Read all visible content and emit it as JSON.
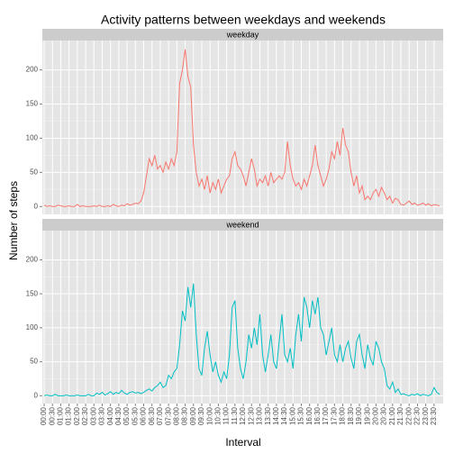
{
  "chart_data": {
    "type": "line",
    "title": "Activity patterns between weekdays and weekends",
    "xlabel": "Interval",
    "ylabel": "Number of steps",
    "categories": [
      "00:00",
      null,
      null,
      "00:30",
      null,
      null,
      "01:00",
      null,
      null,
      "01:30",
      null,
      null,
      "02:00",
      null,
      null,
      "02:30",
      null,
      null,
      "03:00",
      null,
      null,
      "03:30",
      null,
      null,
      "04:00",
      null,
      null,
      "04:30",
      null,
      null,
      "05:00",
      null,
      null,
      "05:30",
      null,
      null,
      "06:00",
      null,
      null,
      "06:30",
      null,
      null,
      "07:00",
      null,
      null,
      "07:30",
      null,
      null,
      "08:00",
      null,
      null,
      "08:30",
      null,
      null,
      "09:00",
      null,
      null,
      "09:30",
      null,
      null,
      "10:00",
      null,
      null,
      "10:30",
      null,
      null,
      "11:00",
      null,
      null,
      "11:30",
      null,
      null,
      "12:00",
      null,
      null,
      "12:30",
      null,
      null,
      "13:00",
      null,
      null,
      "13:30",
      null,
      null,
      "14:00",
      null,
      null,
      "14:30",
      null,
      null,
      "15:00",
      null,
      null,
      "15:30",
      null,
      null,
      "16:00",
      null,
      null,
      "16:30",
      null,
      null,
      "17:00",
      null,
      null,
      "17:30",
      null,
      null,
      "18:00",
      null,
      null,
      "18:30",
      null,
      null,
      "19:00",
      null,
      null,
      "19:30",
      null,
      null,
      "20:00",
      null,
      null,
      "20:30",
      null,
      null,
      "21:00",
      null,
      null,
      "21:30",
      null,
      null,
      "22:00",
      null,
      null,
      "22:30",
      null,
      null,
      "23:00",
      null,
      null,
      "23:30",
      null,
      null
    ],
    "ylim": [
      -11.5,
      243
    ],
    "yticks": [
      0,
      50,
      100,
      150,
      200
    ],
    "grid": true,
    "series": [
      {
        "name": "weekday",
        "color": "#F8766D",
        "values": [
          2,
          0,
          1,
          0,
          0,
          2,
          1,
          0,
          0,
          1,
          0,
          0,
          3,
          0,
          1,
          0,
          0,
          0,
          1,
          0,
          2,
          0,
          0,
          1,
          0,
          3,
          1,
          0,
          2,
          1,
          4,
          2,
          3,
          5,
          4,
          8,
          20,
          45,
          70,
          60,
          75,
          55,
          60,
          50,
          65,
          55,
          70,
          60,
          80,
          180,
          200,
          230,
          190,
          175,
          90,
          50,
          30,
          40,
          25,
          45,
          20,
          35,
          25,
          40,
          20,
          30,
          40,
          45,
          70,
          80,
          60,
          55,
          45,
          30,
          50,
          70,
          55,
          30,
          40,
          35,
          45,
          30,
          50,
          35,
          40,
          45,
          40,
          50,
          95,
          60,
          40,
          30,
          35,
          25,
          40,
          30,
          45,
          60,
          90,
          60,
          45,
          30,
          40,
          55,
          80,
          70,
          95,
          75,
          115,
          90,
          80,
          50,
          30,
          45,
          20,
          30,
          10,
          15,
          10,
          20,
          25,
          15,
          28,
          20,
          10,
          15,
          5,
          12,
          10,
          3,
          2,
          5,
          8,
          3,
          5,
          2,
          3,
          5,
          2,
          4,
          1,
          3,
          2,
          1
        ]
      },
      {
        "name": "weekend",
        "color": "#00BFC4",
        "values": [
          0,
          1,
          0,
          0,
          2,
          0,
          0,
          0,
          1,
          0,
          0,
          0,
          1,
          0,
          0,
          0,
          2,
          0,
          0,
          4,
          2,
          5,
          1,
          3,
          6,
          2,
          5,
          3,
          8,
          4,
          2,
          5,
          6,
          4,
          5,
          3,
          5,
          8,
          10,
          7,
          12,
          15,
          20,
          12,
          15,
          30,
          25,
          35,
          40,
          75,
          125,
          110,
          160,
          130,
          165,
          90,
          40,
          30,
          70,
          95,
          60,
          35,
          50,
          30,
          20,
          35,
          25,
          60,
          130,
          140,
          70,
          40,
          25,
          50,
          90,
          70,
          100,
          75,
          120,
          60,
          35,
          60,
          90,
          50,
          40,
          80,
          120,
          60,
          50,
          70,
          40,
          90,
          120,
          80,
          145,
          130,
          100,
          140,
          120,
          145,
          100,
          90,
          60,
          80,
          100,
          60,
          50,
          75,
          50,
          70,
          80,
          55,
          40,
          80,
          90,
          60,
          40,
          75,
          55,
          45,
          80,
          70,
          50,
          40,
          15,
          10,
          20,
          5,
          10,
          2,
          3,
          1,
          0,
          2,
          1,
          3,
          0,
          2,
          1,
          0,
          2,
          12,
          5,
          2
        ]
      }
    ]
  }
}
